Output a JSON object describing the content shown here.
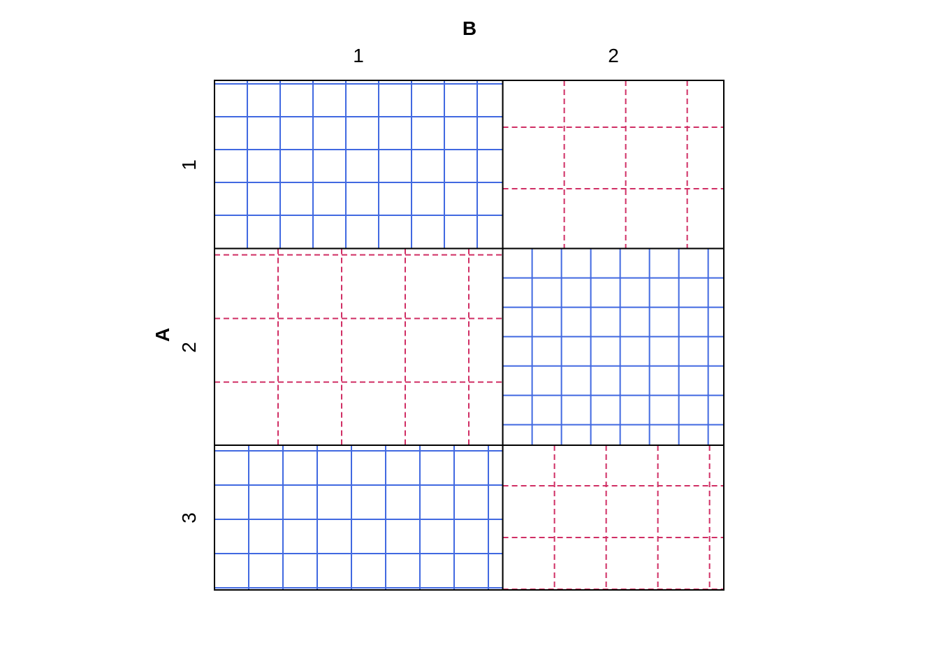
{
  "chart_data": {
    "type": "mosaic",
    "column_variable": {
      "name": "B",
      "levels": [
        "1",
        "2"
      ]
    },
    "row_variable": {
      "name": "A",
      "levels": [
        "1",
        "2",
        "3"
      ]
    },
    "column_proportions": [
      0.566,
      0.434
    ],
    "row_proportions": [
      0.33,
      0.386,
      0.284
    ],
    "cells": [
      {
        "A": "1",
        "B": "1",
        "shading": "positive",
        "style": "solid-grid"
      },
      {
        "A": "1",
        "B": "2",
        "shading": "negative",
        "style": "dashed-grid"
      },
      {
        "A": "2",
        "B": "1",
        "shading": "negative",
        "style": "dashed-grid"
      },
      {
        "A": "2",
        "B": "2",
        "shading": "positive",
        "style": "solid-grid"
      },
      {
        "A": "3",
        "B": "1",
        "shading": "positive",
        "style": "solid-grid"
      },
      {
        "A": "3",
        "B": "2",
        "shading": "negative",
        "style": "dashed-grid"
      }
    ]
  },
  "colors": {
    "positive": "#4169E1",
    "negative": "#D02E64",
    "border": "#000000"
  }
}
